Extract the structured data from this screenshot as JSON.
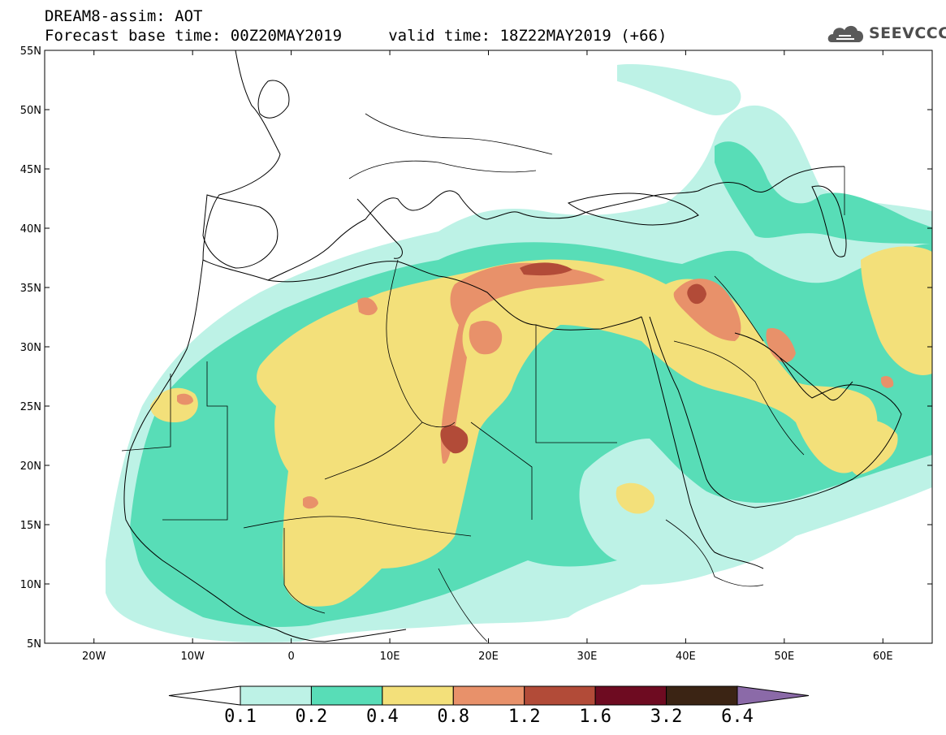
{
  "header": {
    "line1": "DREAM8-assim: AOT",
    "line2": "Forecast base time: 00Z20MAY2019     valid time: 18Z22MAY2019 (+66)",
    "logo_text": "SEEVCCC"
  },
  "map": {
    "projection": "lat-lon",
    "lon_range": [
      -25,
      65
    ],
    "lat_range": [
      5,
      55
    ],
    "lat_ticks": [
      "55N",
      "50N",
      "45N",
      "40N",
      "35N",
      "30N",
      "25N",
      "20N",
      "15N",
      "10N",
      "5N"
    ],
    "lon_ticks": [
      "20W",
      "10W",
      "0",
      "10E",
      "20E",
      "30E",
      "40E",
      "50E",
      "60E"
    ]
  },
  "colorbar": {
    "levels": [
      "0.1",
      "0.2",
      "0.4",
      "0.8",
      "1.2",
      "1.6",
      "3.2",
      "6.4"
    ],
    "colors": [
      "#bdf2e6",
      "#58ddb7",
      "#f3e07a",
      "#e8916a",
      "#b24b38",
      "#6e0b21",
      "#3b2414",
      "#8b6aa8"
    ]
  }
}
